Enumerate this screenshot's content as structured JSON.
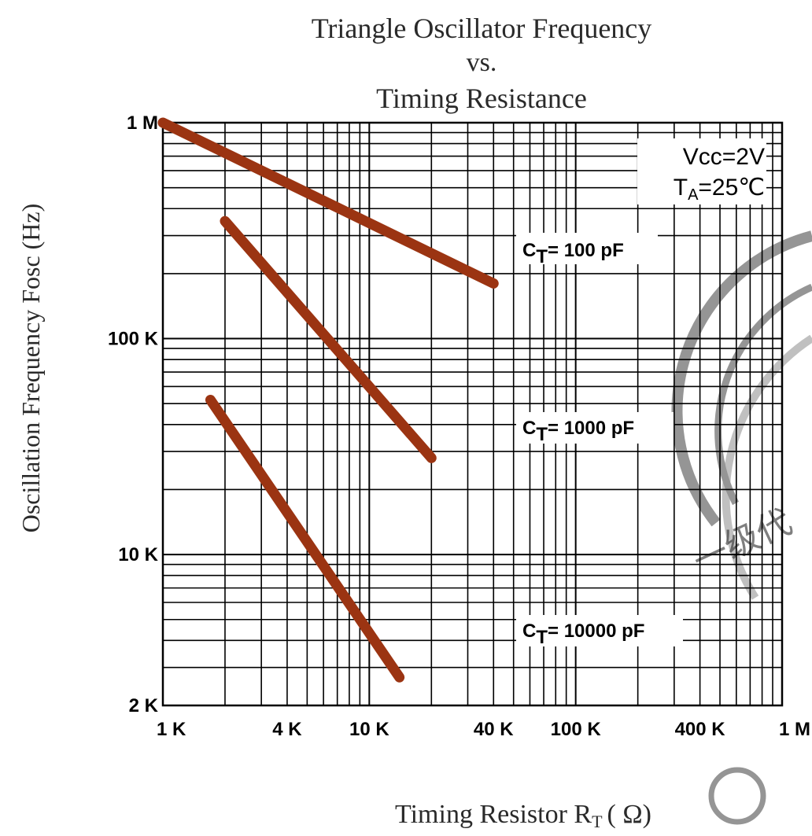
{
  "chart_data": {
    "type": "line",
    "title_lines": [
      "Triangle Oscillator Frequency",
      "vs.",
      "Timing Resistance"
    ],
    "xlabel_main": "Timing Resistor R",
    "xlabel_sub": "T",
    "xlabel_unit": "( Ω)",
    "ylabel": "Oscillation Frequency Fosc (Hz)",
    "x_scale": "log",
    "y_scale": "log",
    "xlim": [
      1000,
      1000000
    ],
    "ylim": [
      2000,
      1000000
    ],
    "x_ticks": [
      {
        "value": 1000,
        "label": "1 K"
      },
      {
        "value": 4000,
        "label": "4 K"
      },
      {
        "value": 10000,
        "label": "10 K"
      },
      {
        "value": 40000,
        "label": "40 K"
      },
      {
        "value": 100000,
        "label": "100 K"
      },
      {
        "value": 400000,
        "label": "400 K"
      },
      {
        "value": 1000000,
        "label": "1 M"
      }
    ],
    "y_ticks": [
      {
        "value": 2000,
        "label": "2 K"
      },
      {
        "value": 10000,
        "label": "10 K"
      },
      {
        "value": 100000,
        "label": "100 K"
      },
      {
        "value": 1000000,
        "label": "1 M"
      }
    ],
    "grid": true,
    "conditions": {
      "vcc": {
        "main": "Vcc",
        "value": "=2V"
      },
      "ta": {
        "main": "T",
        "sub": "A",
        "value": "=25℃"
      }
    },
    "series": [
      {
        "label_main": "C",
        "label_sub": "T",
        "label_value": "= 100 pF",
        "color": "#9b3412",
        "x": [
          1000,
          40000
        ],
        "y": [
          1000000,
          180000
        ]
      },
      {
        "label_main": "C",
        "label_sub": "T",
        "label_value": "= 1000 pF",
        "color": "#9b3412",
        "x": [
          2000,
          20000
        ],
        "y": [
          350000,
          28000
        ]
      },
      {
        "label_main": "C",
        "label_sub": "T",
        "label_value": "= 10000 pF",
        "color": "#9b3412",
        "x": [
          1700,
          14000
        ],
        "y": [
          52000,
          2700
        ]
      }
    ],
    "watermark_text": "一级代"
  }
}
